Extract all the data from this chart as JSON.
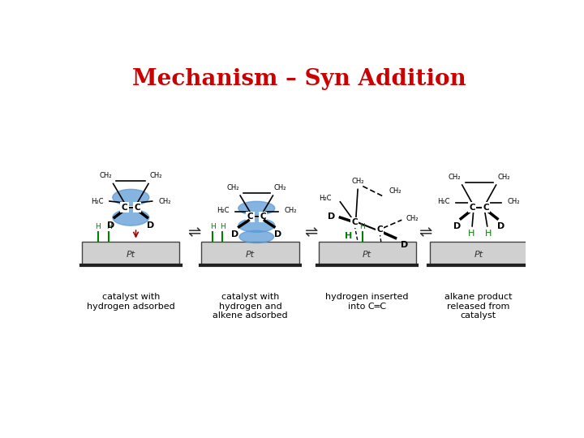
{
  "title": "Mechanism – Syn Addition",
  "title_color": "#cc0000",
  "title_fontsize": 20,
  "bg_color": "#ffffff",
  "panel_captions": [
    "catalyst with\nhydrogen adsorbed",
    "catalyst with\nhydrogen and\nalkene adsorbed",
    "hydrogen inserted\ninto C═C",
    "alkane product\nreleased from\ncatalyst"
  ],
  "arrow_symbol": "⇌",
  "pt_label": "Pt",
  "pt_box_color": "#d0d0d0",
  "pt_box_edge": "#555555",
  "blue_fill": "#5b9bd5",
  "blue_alpha": 0.75,
  "green_color": "#008000",
  "red_color": "#cc0000",
  "black_color": "#000000"
}
